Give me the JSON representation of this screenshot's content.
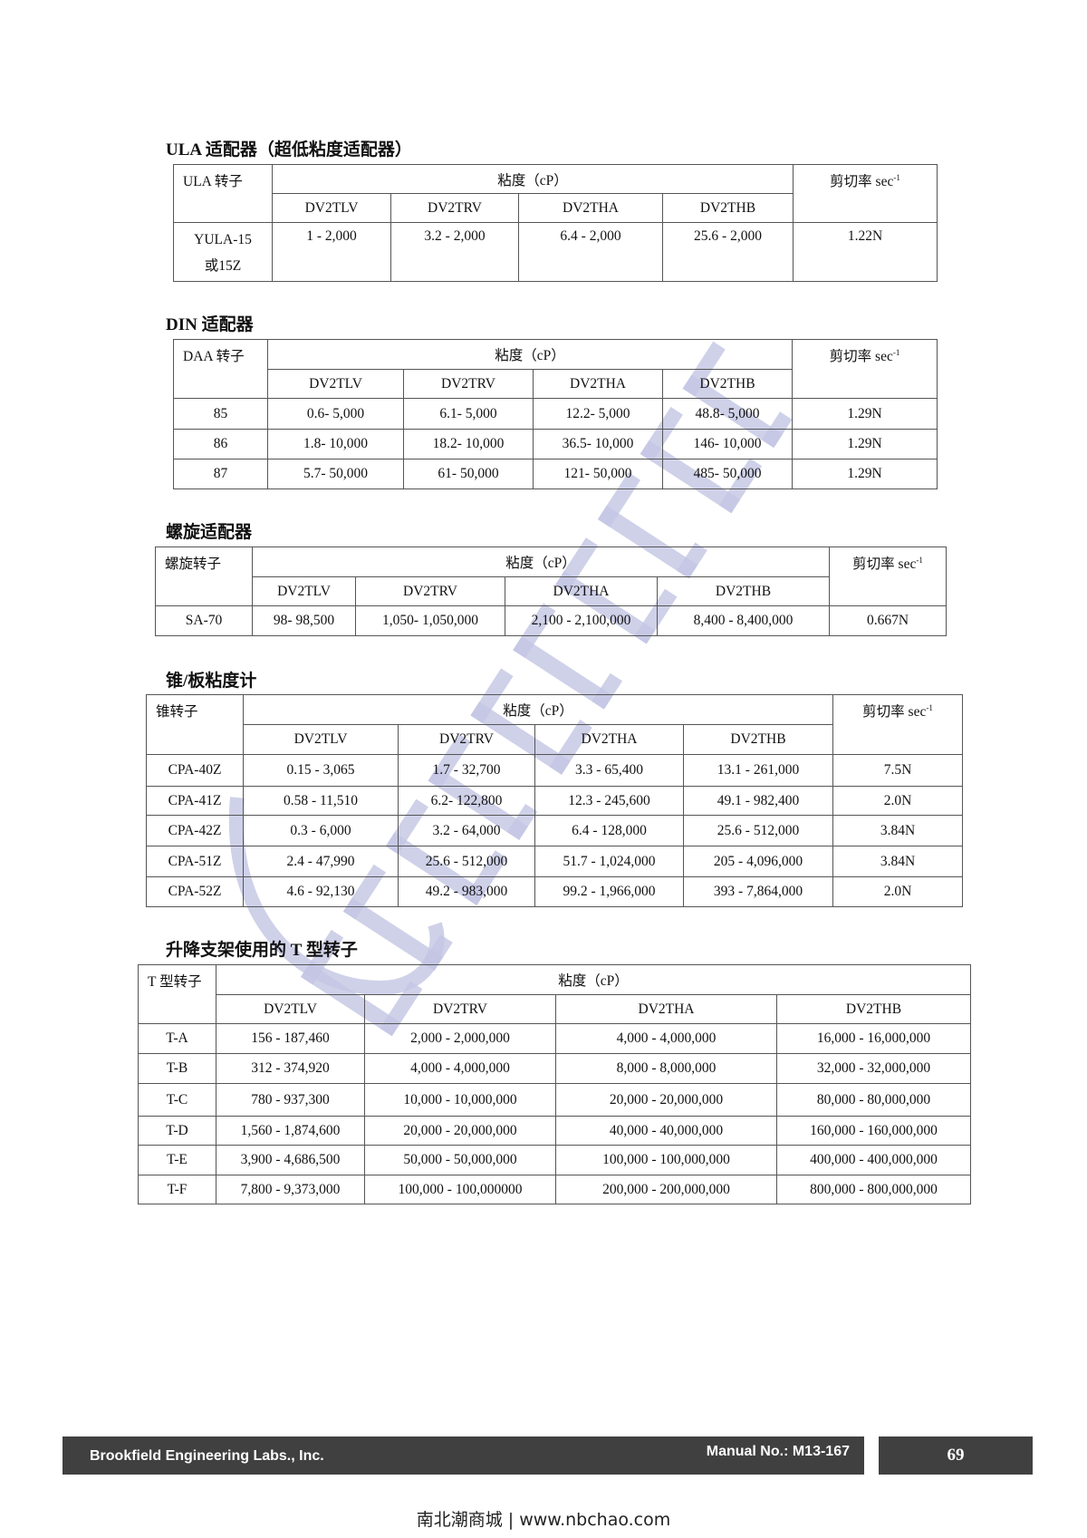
{
  "tables": [
    {
      "id": "ula",
      "title": "ULA 适配器（超低粘度适配器）",
      "rotor_header": "ULA 转子",
      "viscosity_header": "粘度（cP）",
      "shear_header": "剪切率 sec",
      "shear_sup": "-1",
      "models": [
        "DV2TLV",
        "DV2TRV",
        "DV2THA",
        "DV2THB"
      ],
      "rows": [
        {
          "rotor": "YULA-15\n或15Z",
          "values": [
            "1 - 2,000",
            "3.2 - 2,000",
            "6.4 - 2,000",
            "25.6 - 2,000"
          ],
          "shear": "1.22N"
        }
      ]
    },
    {
      "id": "din",
      "title": "DIN 适配器",
      "rotor_header": "DAA 转子",
      "viscosity_header": "粘度（cP）",
      "shear_header": "剪切率 sec",
      "shear_sup": "-1",
      "models": [
        "DV2TLV",
        "DV2TRV",
        "DV2THA",
        "DV2THB"
      ],
      "rows": [
        {
          "rotor": "85",
          "values": [
            "0.6- 5,000",
            "6.1- 5,000",
            "12.2- 5,000",
            "48.8- 5,000"
          ],
          "shear": "1.29N"
        },
        {
          "rotor": "86",
          "values": [
            "1.8- 10,000",
            "18.2- 10,000",
            "36.5- 10,000",
            "146- 10,000"
          ],
          "shear": "1.29N"
        },
        {
          "rotor": "87",
          "values": [
            "5.7- 50,000",
            "61- 50,000",
            "121- 50,000",
            "485- 50,000"
          ],
          "shear": "1.29N"
        }
      ]
    },
    {
      "id": "spiral",
      "title": "螺旋适配器",
      "rotor_header": "螺旋转子",
      "viscosity_header": "粘度（cP）",
      "shear_header": "剪切率 sec",
      "shear_sup": "-1",
      "models": [
        "DV2TLV",
        "DV2TRV",
        "DV2THA",
        "DV2THB"
      ],
      "rows": [
        {
          "rotor": "SA-70",
          "values": [
            "98- 98,500",
            "1,050- 1,050,000",
            "2,100 - 2,100,000",
            "8,400 - 8,400,000"
          ],
          "shear": "0.667N"
        }
      ]
    },
    {
      "id": "cone-plate",
      "title": "锥/板粘度计",
      "rotor_header": "锥转子",
      "viscosity_header": "粘度（cP）",
      "shear_header": "剪切率 sec",
      "shear_sup": "-1",
      "models": [
        "DV2TLV",
        "DV2TRV",
        "DV2THA",
        "DV2THB"
      ],
      "rows": [
        {
          "rotor": "CPA-40Z",
          "values": [
            "0.15 - 3,065",
            "1.7 - 32,700",
            "3.3 - 65,400",
            "13.1 - 261,000"
          ],
          "shear": "7.5N"
        },
        {
          "rotor": "CPA-41Z",
          "values": [
            "0.58 - 11,510",
            "6.2- 122,800",
            "12.3 - 245,600",
            "49.1 - 982,400"
          ],
          "shear": "2.0N"
        },
        {
          "rotor": "CPA-42Z",
          "values": [
            "0.3 - 6,000",
            "3.2 - 64,000",
            "6.4 - 128,000",
            "25.6 - 512,000"
          ],
          "shear": "3.84N"
        },
        {
          "rotor": "CPA-51Z",
          "values": [
            "2.4 - 47,990",
            "25.6 - 512,000",
            "51.7 - 1,024,000",
            "205 - 4,096,000"
          ],
          "shear": "3.84N"
        },
        {
          "rotor": "CPA-52Z",
          "values": [
            "4.6 - 92,130",
            "49.2 - 983,000",
            "99.2 - 1,966,000",
            "393 - 7,864,000"
          ],
          "shear": "2.0N"
        }
      ]
    },
    {
      "id": "t-spindle",
      "title": "升降支架使用的 T 型转子",
      "rotor_header": "T 型转子",
      "viscosity_header": "粘度（cP）",
      "models": [
        "DV2TLV",
        "DV2TRV",
        "DV2THA",
        "DV2THB"
      ],
      "rows": [
        {
          "rotor": "T-A",
          "values": [
            "156 - 187,460",
            "2,000 - 2,000,000",
            "4,000 - 4,000,000",
            "16,000 - 16,000,000"
          ]
        },
        {
          "rotor": "T-B",
          "values": [
            "312 - 374,920",
            "4,000 - 4,000,000",
            "8,000 - 8,000,000",
            "32,000 - 32,000,000"
          ]
        },
        {
          "rotor": "T-C",
          "values": [
            "780 - 937,300",
            "10,000 - 10,000,000",
            "20,000 - 20,000,000",
            "80,000 - 80,000,000"
          ]
        },
        {
          "rotor": "T-D",
          "values": [
            "1,560 - 1,874,600",
            "20,000 - 20,000,000",
            "40,000 - 40,000,000",
            "160,000 - 160,000,000"
          ]
        },
        {
          "rotor": "T-E",
          "values": [
            "3,900 - 4,686,500",
            "50,000 - 50,000,000",
            "100,000 - 100,000,000",
            "400,000 - 400,000,000"
          ]
        },
        {
          "rotor": "T-F",
          "values": [
            "7,800 - 9,373,000",
            "100,000 - 100,000000",
            "200,000 - 200,000,000",
            "800,000 - 800,000,000"
          ]
        }
      ]
    }
  ],
  "watermark": {
    "text": "BROOKFIELD",
    "color": "#c3c6e4"
  },
  "footer": {
    "company": "Brookfield Engineering Labs., Inc.",
    "manual": "Manual No.: M13-167",
    "page": "69",
    "bar_color": "#404040"
  },
  "site": "南北潮商城 | www.nbchao.com"
}
